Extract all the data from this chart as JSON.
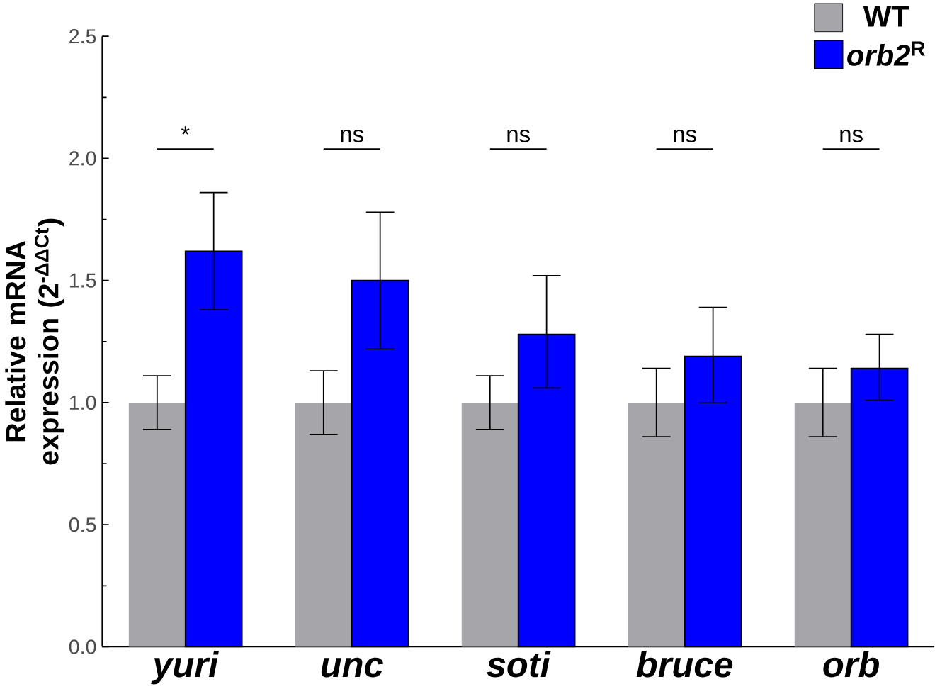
{
  "chart_data": {
    "type": "bar",
    "categories": [
      "yuri",
      "unc",
      "soti",
      "bruce",
      "orb"
    ],
    "ylabel": "Relative mRNA expression (2$^{-ΔΔCt}$)",
    "ylim": [
      0,
      2.5
    ],
    "yticks": [
      {
        "value": 0,
        "label": "0.0"
      },
      {
        "value": 0.5,
        "label": "0.5"
      },
      {
        "value": 1,
        "label": "1.0"
      },
      {
        "value": 1.5,
        "label": "1.5"
      },
      {
        "value": 2,
        "label": "2.0"
      },
      {
        "value": 2.5,
        "label": "2.5"
      }
    ],
    "series": [
      {
        "name": "WT",
        "color": "#a6a5aa",
        "values": [
          1.0,
          1.0,
          1.0,
          1.0,
          1.0
        ],
        "errors": [
          [
            0.89,
            1.11
          ],
          [
            0.87,
            1.13
          ],
          [
            0.89,
            1.11
          ],
          [
            0.86,
            1.14
          ],
          [
            0.86,
            1.14
          ]
        ]
      },
      {
        "name": "*orb2*$^{R}$",
        "color": "#0000ff",
        "values": [
          1.62,
          1.5,
          1.28,
          1.19,
          1.14
        ],
        "errors": [
          [
            1.38,
            1.86
          ],
          [
            1.22,
            1.78
          ],
          [
            1.06,
            1.52
          ],
          [
            1.0,
            1.39
          ],
          [
            1.01,
            1.28
          ]
        ]
      }
    ],
    "annotations": [
      "*",
      "ns",
      "ns",
      "ns",
      "ns"
    ],
    "legend": "top right",
    "grid": false
  }
}
